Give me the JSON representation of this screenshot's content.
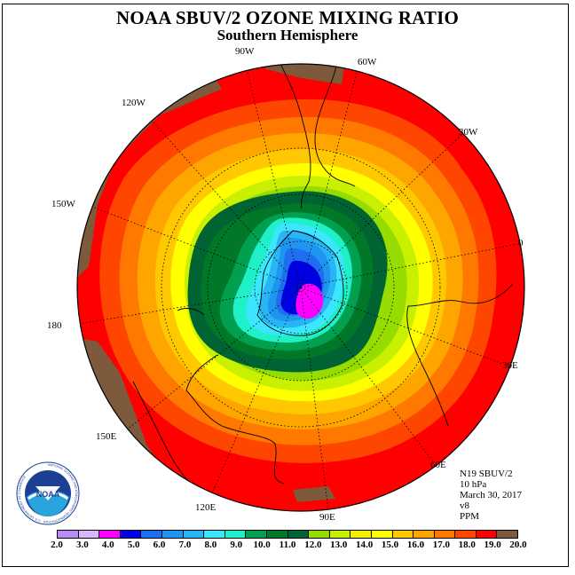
{
  "header": {
    "title": "NOAA SBUV/2 OZONE MIXING RATIO",
    "subtitle": "Southern Hemisphere"
  },
  "longitude_labels": [
    "90W",
    "60W",
    "120W",
    "30W",
    "150W",
    "0",
    "180",
    "30E",
    "150E",
    "60E",
    "120E",
    "90E"
  ],
  "info": {
    "satellite": "N19 SBUV/2",
    "pressure": "10 hPa",
    "date": "March 30, 2017",
    "version": "v8",
    "units": "PPM"
  },
  "logo": {
    "text": "NOAA",
    "ring_text": "NATIONAL OCEANIC AND ATMOSPHERIC ADMINISTRATION · U.S. DEPARTMENT OF COMMERCE"
  },
  "colorbar": {
    "colors": [
      "#bb8cf5",
      "#dcb4ff",
      "#ff00ff",
      "#0000e6",
      "#1e6ef0",
      "#1e96f0",
      "#28b4f5",
      "#3ce6ff",
      "#20f0c8",
      "#00a050",
      "#007828",
      "#006432",
      "#96dc00",
      "#c8f000",
      "#f0f000",
      "#ffff00",
      "#ffc800",
      "#ffa500",
      "#ff7800",
      "#ff4600",
      "#ff0000",
      "#7d5a3c"
    ],
    "tick_labels": [
      "2.0",
      "3.0",
      "4.0",
      "5.0",
      "6.0",
      "7.0",
      "8.0",
      "9.0",
      "10.0",
      "11.0",
      "12.0",
      "13.0",
      "14.0",
      "15.0",
      "16.0",
      "17.0",
      "18.0",
      "19.0",
      "20.0"
    ]
  },
  "colors": {
    "land_outline": "#000000",
    "grid": "#000000"
  }
}
